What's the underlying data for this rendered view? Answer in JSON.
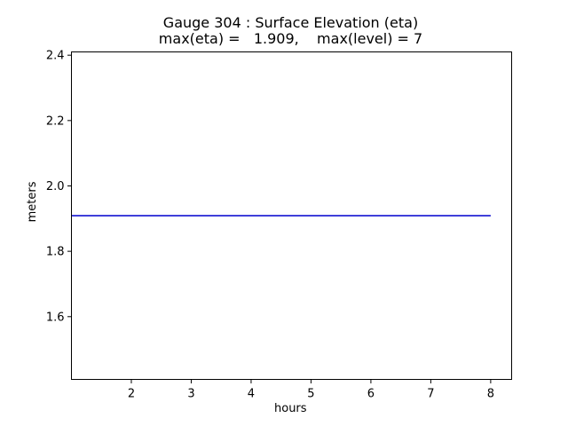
{
  "chart_data": {
    "type": "line",
    "title": "Gauge 304 : Surface Elevation (eta)",
    "subtitle": "max(eta) =   1.909,    max(level) = 7",
    "xlabel": "hours",
    "ylabel": "meters",
    "xlim": [
      1.0,
      8.35
    ],
    "ylim": [
      1.408,
      2.41
    ],
    "xticks": [
      2,
      3,
      4,
      5,
      6,
      7,
      8
    ],
    "yticks": [
      1.6,
      1.8,
      2.0,
      2.2,
      2.4
    ],
    "xtick_labels": [
      "2",
      "3",
      "4",
      "5",
      "6",
      "7",
      "8"
    ],
    "ytick_labels": [
      "1.6",
      "1.8",
      "2.0",
      "2.2",
      "2.4"
    ],
    "grid": false,
    "series": [
      {
        "color": "#0000cd",
        "x": [
          1.0,
          2.0,
          3.0,
          4.0,
          5.0,
          6.0,
          7.0,
          8.0
        ],
        "y": [
          1.909,
          1.909,
          1.909,
          1.909,
          1.909,
          1.909,
          1.909,
          1.909
        ]
      }
    ]
  }
}
